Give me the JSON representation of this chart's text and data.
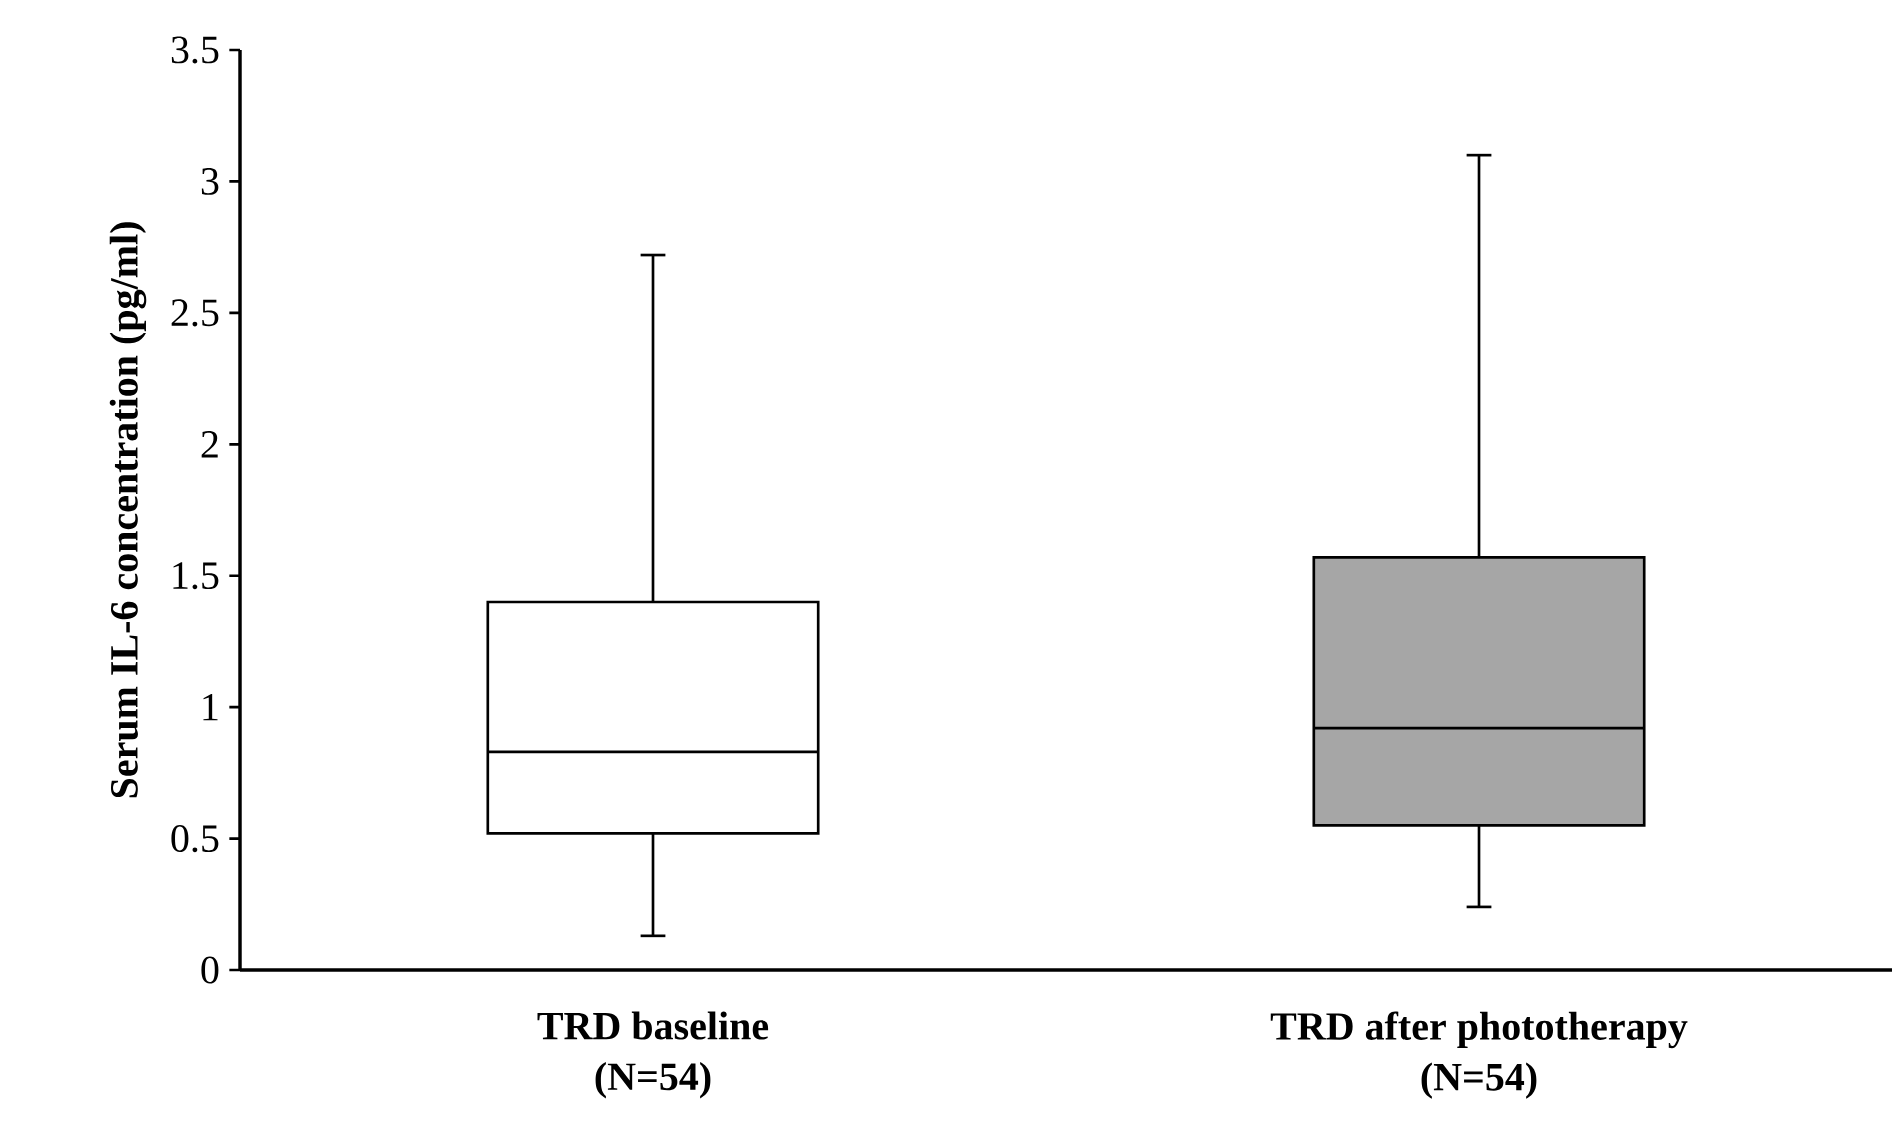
{
  "chart_data": {
    "type": "box",
    "ylabel": "Serum IL-6 concentration (pg/ml)",
    "categories": [
      "TRD baseline (N=54)",
      "TRD after phototherapy (N=54)"
    ],
    "boxes": [
      {
        "low": 0.13,
        "q1": 0.52,
        "median": 0.83,
        "q3": 1.4,
        "high": 2.72
      },
      {
        "low": 0.24,
        "q1": 0.55,
        "median": 0.92,
        "q3": 1.57,
        "high": 3.1
      }
    ],
    "colors": [
      "#ffffff",
      "#a6a6a6"
    ],
    "ylim": [
      0,
      3.5
    ],
    "yticks": [
      0,
      0.5,
      1,
      1.5,
      2,
      2.5,
      3,
      3.5
    ]
  }
}
